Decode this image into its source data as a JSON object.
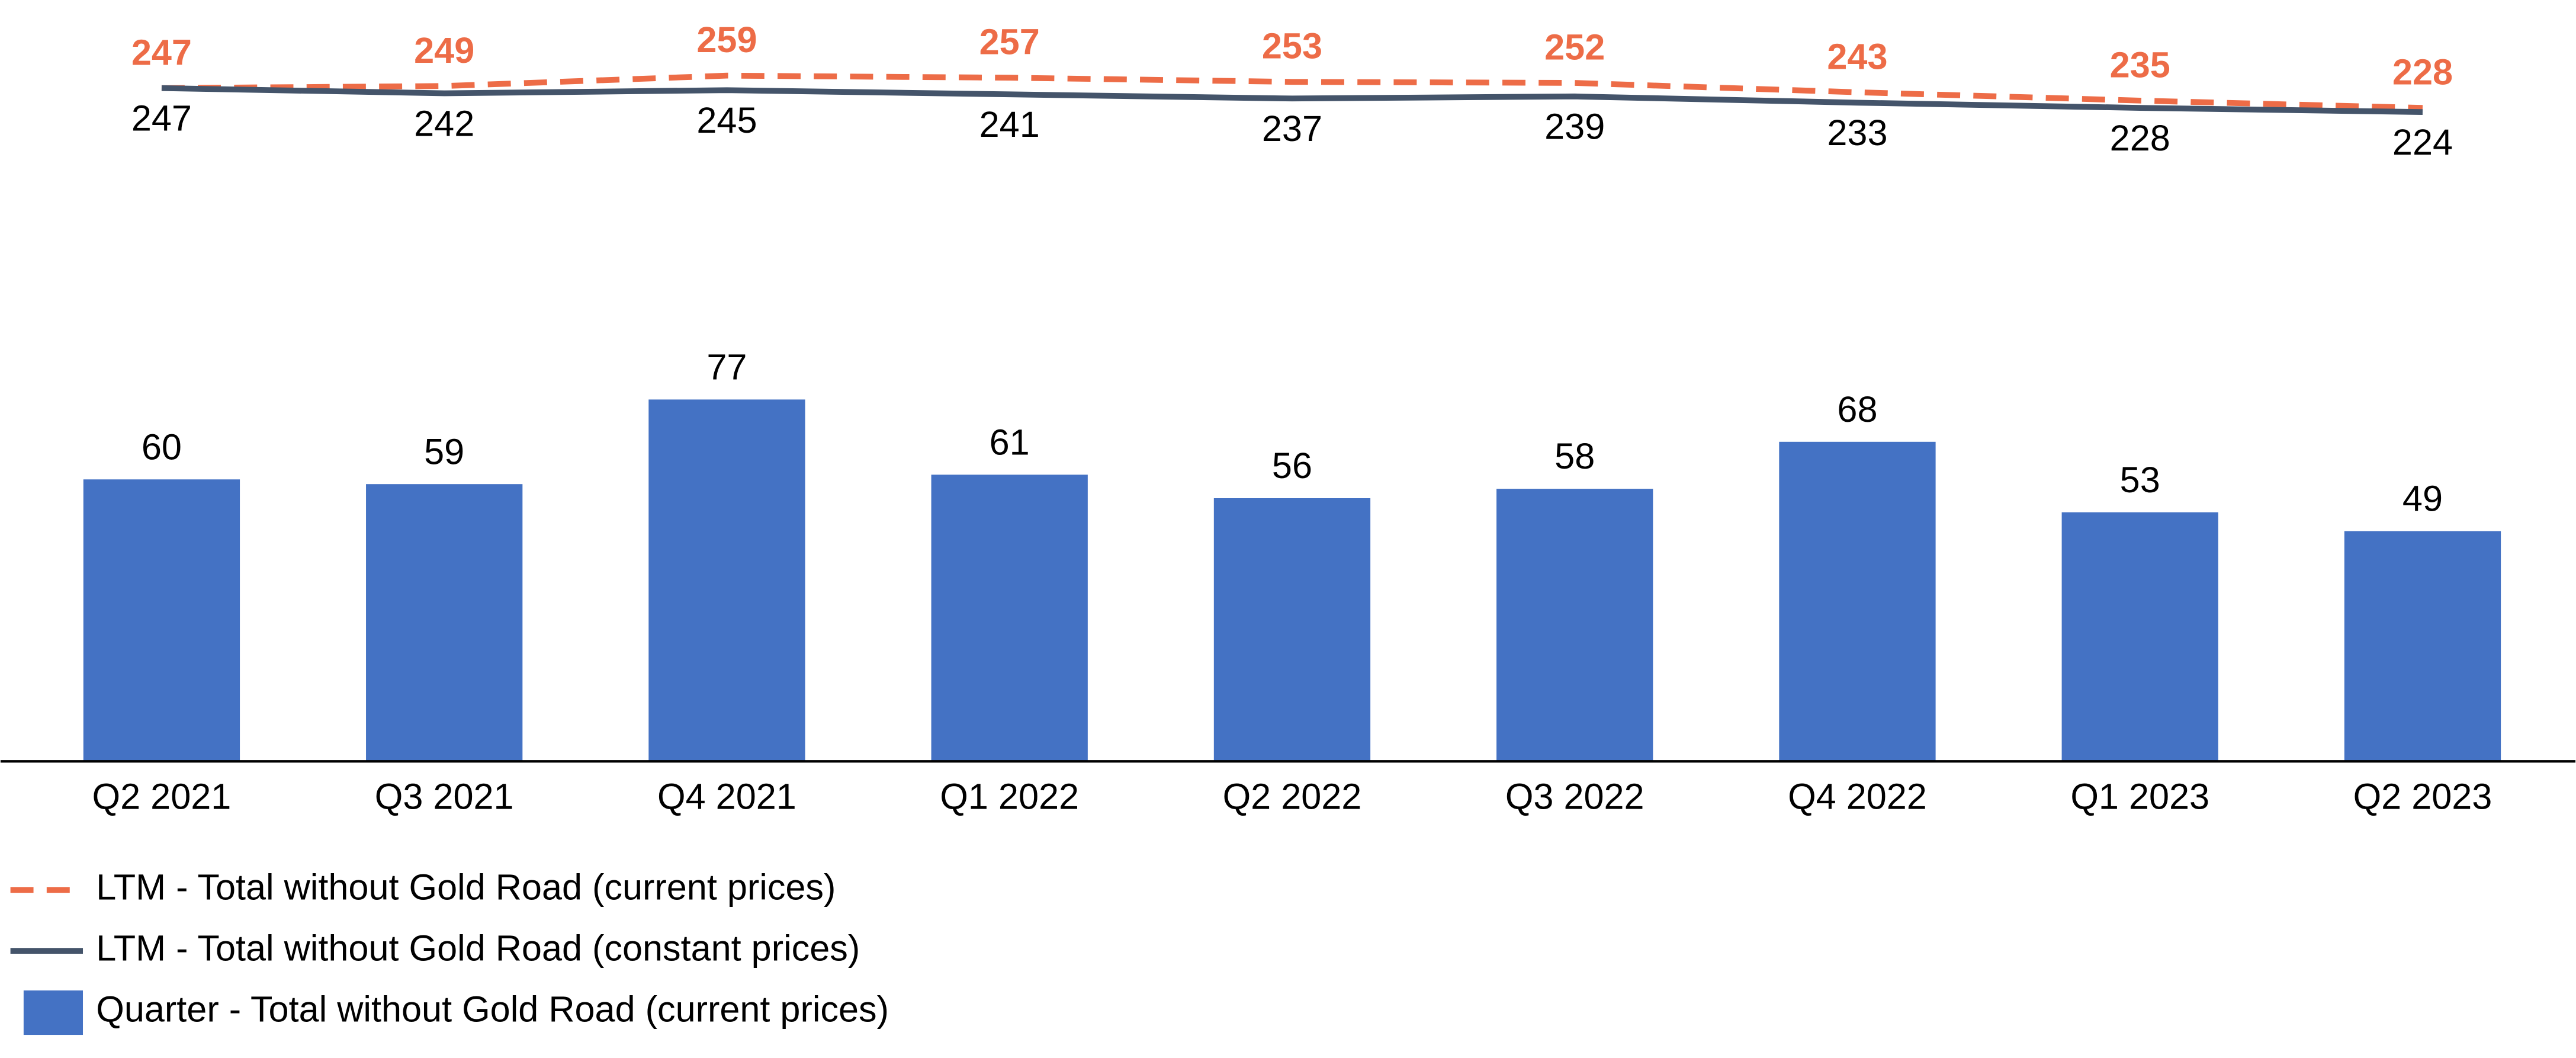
{
  "chart_data": {
    "type": "combo",
    "categories": [
      "Q2 2021",
      "Q3 2021",
      "Q4 2021",
      "Q1 2022",
      "Q2 2022",
      "Q3 2022",
      "Q4 2022",
      "Q1 2023",
      "Q2 2023"
    ],
    "series": [
      {
        "name": "LTM - Total without Gold Road (current prices)",
        "type": "line",
        "axis": "y2",
        "dashed": true,
        "color": "#ed6c47",
        "values": [
          247,
          249,
          259,
          257,
          253,
          252,
          243,
          235,
          228
        ]
      },
      {
        "name": "LTM - Total without Gold Road (constant prices)",
        "type": "line",
        "axis": "y2",
        "dashed": false,
        "color": "#44546a",
        "values": [
          247,
          242,
          245,
          241,
          237,
          239,
          233,
          228,
          224
        ]
      },
      {
        "name": "Quarter - Total without Gold Road (current prices)",
        "type": "bar",
        "color": "#4472c4",
        "values": [
          60,
          59,
          77,
          61,
          56,
          58,
          68,
          53,
          49
        ]
      }
    ],
    "ylim": [
      0,
      155
    ],
    "y2lim": [
      -400,
      300
    ],
    "legend": "bottom-left"
  }
}
